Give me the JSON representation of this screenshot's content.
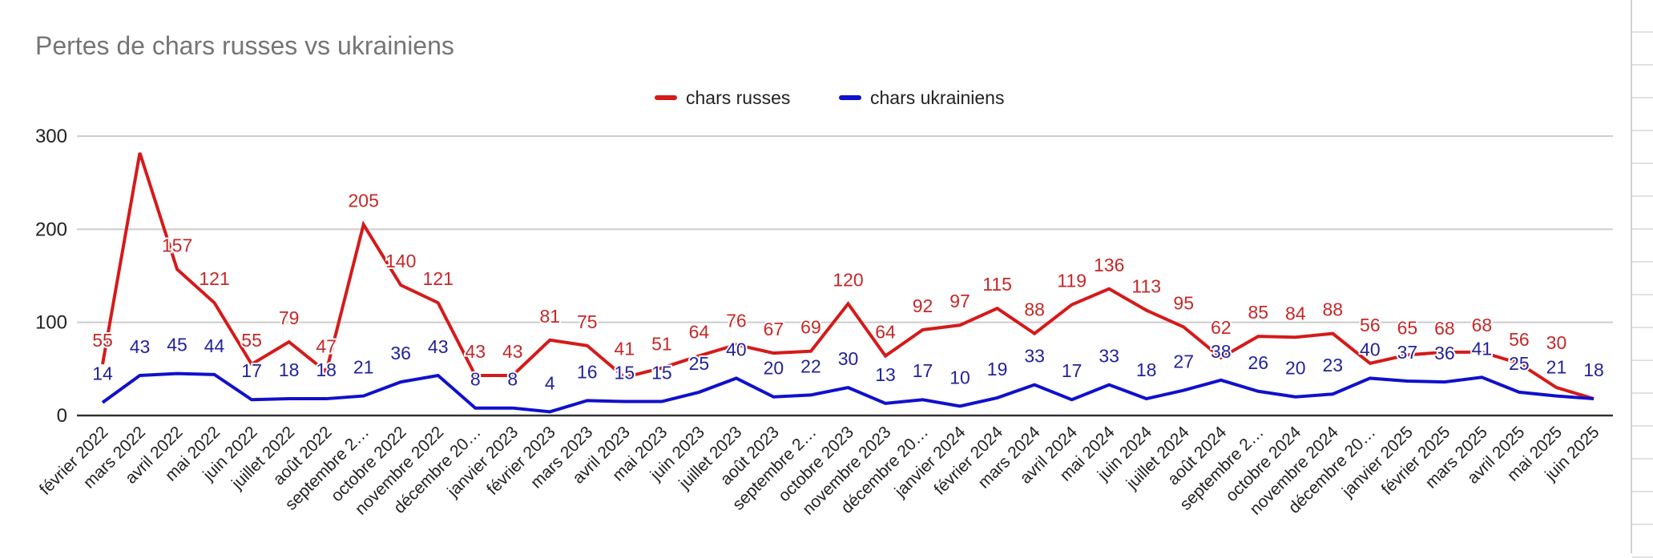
{
  "chart_data": {
    "type": "line",
    "title": "Pertes de chars russes vs ukrainiens",
    "xlabel": "",
    "ylabel": "",
    "ylim": [
      0,
      300
    ],
    "yticks": [
      "0",
      "100",
      "200",
      "300"
    ],
    "grid": true,
    "legend": "top",
    "categories": [
      "février 2022",
      "mars 2022",
      "avril 2022",
      "mai 2022",
      "juin 2022",
      "juillet 2022",
      "août 2022",
      "septembre 2…",
      "octobre 2022",
      "novembre 2022",
      "décembre 20…",
      "janvier 2023",
      "février 2023",
      "mars 2023",
      "avril 2023",
      "mai 2023",
      "juin 2023",
      "juillet 2023",
      "août 2023",
      "septembre 2…",
      "octobre 2023",
      "novembre 2023",
      "décembre 20…",
      "janvier 2024",
      "février 2024",
      "mars 2024",
      "avril 2024",
      "mai 2024",
      "juin 2024",
      "juillet 2024",
      "août 2024",
      "septembre 2…",
      "octobre 2024",
      "novembre 2024",
      "décembre 20…",
      "janvier 2025",
      "février 2025",
      "mars 2025",
      "avril 2025",
      "mai 2025",
      "juin 2025"
    ],
    "series": [
      {
        "name": "chars russes",
        "color": "#d51a1a",
        "label_color": "#c62828",
        "values": [
          55,
          282,
          157,
          121,
          55,
          79,
          47,
          205,
          140,
          121,
          43,
          43,
          81,
          75,
          41,
          51,
          64,
          76,
          67,
          69,
          120,
          64,
          92,
          97,
          115,
          88,
          119,
          136,
          113,
          95,
          62,
          85,
          84,
          88,
          56,
          65,
          68,
          68,
          56,
          30,
          18
        ]
      },
      {
        "name": "chars ukrainiens",
        "color": "#1010cc",
        "label_color": "#23239a",
        "values": [
          14,
          43,
          45,
          44,
          17,
          18,
          18,
          21,
          36,
          43,
          8,
          8,
          4,
          16,
          15,
          15,
          25,
          40,
          20,
          22,
          30,
          13,
          17,
          10,
          19,
          33,
          17,
          33,
          18,
          27,
          38,
          26,
          20,
          23,
          40,
          37,
          36,
          41,
          25,
          21,
          18
        ]
      }
    ]
  }
}
